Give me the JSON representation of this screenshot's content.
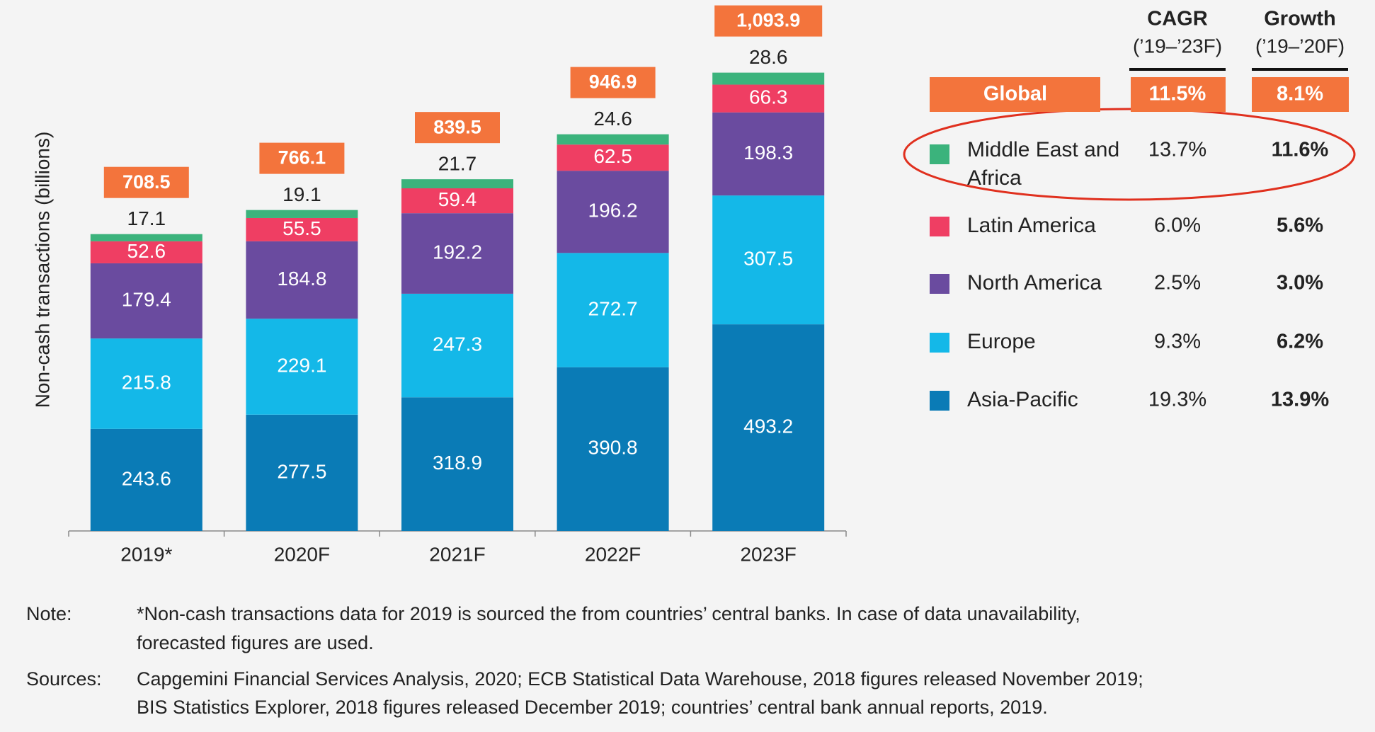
{
  "chart_data": {
    "type": "stacked-bar",
    "y_axis_label": "Non-cash transactions (billions)",
    "categories": [
      "2019*",
      "2020F",
      "2021F",
      "2022F",
      "2023F"
    ],
    "ylim": [
      0,
      1100
    ],
    "series": [
      {
        "name": "Asia-Pacific",
        "color": "#0a7bb6",
        "values": [
          243.6,
          277.5,
          318.9,
          390.8,
          493.2
        ],
        "cagr": "19.3%",
        "growth": "13.9%"
      },
      {
        "name": "Europe",
        "color": "#14b8e8",
        "values": [
          215.8,
          229.1,
          247.3,
          272.7,
          307.5
        ],
        "cagr": "9.3%",
        "growth": "6.2%"
      },
      {
        "name": "North America",
        "color": "#6a4b9f",
        "values": [
          179.4,
          184.8,
          192.2,
          196.2,
          198.3
        ],
        "cagr": "2.5%",
        "growth": "3.0%"
      },
      {
        "name": "Latin America",
        "color": "#ef3e63",
        "values": [
          52.6,
          55.5,
          59.4,
          62.5,
          66.3
        ],
        "cagr": "6.0%",
        "growth": "5.6%"
      },
      {
        "name": "Middle East and Africa",
        "color": "#3bb37c",
        "values": [
          17.1,
          19.1,
          21.7,
          24.6,
          28.6
        ],
        "cagr": "13.7%",
        "growth": "11.6%"
      }
    ],
    "totals": {
      "color": "#f3743c",
      "values": [
        708.5,
        766.1,
        839.5,
        946.9,
        1093.9
      ],
      "value_labels": [
        "708.5",
        "766.1",
        "839.5",
        "946.9",
        "1,093.9"
      ]
    },
    "columns": [
      {
        "title": "CAGR",
        "period": "(’19–’23F)"
      },
      {
        "title": "Growth",
        "period": "(’19–’20F)"
      }
    ],
    "global": {
      "label": "Global",
      "cagr": "11.5%",
      "growth": "8.1%"
    },
    "note": {
      "label": "Note:",
      "lines": [
        "*Non-cash transactions data for 2019 is sourced the from countries’ central banks. In case of data unavailability,",
        "forecasted figures are used."
      ]
    },
    "sources": {
      "label": "Sources:",
      "lines": [
        "Capgemini Financial Services Analysis, 2020; ECB Statistical Data Warehouse, 2018 figures released November 2019;",
        "BIS Statistics Explorer, 2018 figures released December 2019; countries’ central bank annual reports, 2019."
      ]
    }
  }
}
